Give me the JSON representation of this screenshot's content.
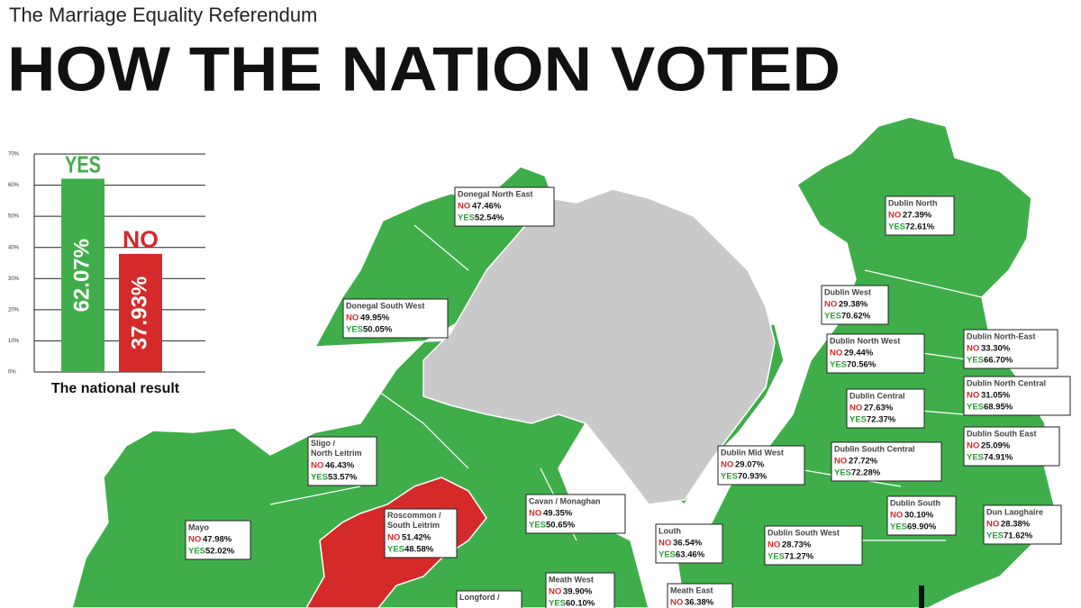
{
  "header": {
    "subtitle": "The Marriage Equality Referendum",
    "title": "HOW THE NATION VOTED"
  },
  "chart_data": {
    "type": "bar",
    "title": "The national result",
    "categories": [
      "YES",
      "NO"
    ],
    "values": [
      62.07,
      37.93
    ],
    "value_labels": [
      "62.07%",
      "37.93%"
    ],
    "colors": [
      "#3fae4a",
      "#d42a2a"
    ],
    "ylim": [
      0,
      70
    ],
    "yticks": [
      {
        "value": 0,
        "label": "0%"
      },
      {
        "value": 10,
        "label": "10%"
      },
      {
        "value": 20,
        "label": "20%"
      },
      {
        "value": 30,
        "label": "30%"
      },
      {
        "value": 40,
        "label": "40%"
      },
      {
        "value": 50,
        "label": "50%"
      },
      {
        "value": 60,
        "label": "60%"
      },
      {
        "value": 70,
        "label": "70%"
      }
    ],
    "grid": true
  },
  "legend": {
    "no": "NO",
    "yes": "YES"
  },
  "constituencies": [
    {
      "name": "Donegal North East",
      "no": "47.46%",
      "yes": "52.54%"
    },
    {
      "name": "Donegal South West",
      "no": "49.95%",
      "yes": "50.05%"
    },
    {
      "name": "Dublin North",
      "no": "27.39%",
      "yes": "72.61%"
    },
    {
      "name": "Dublin West",
      "no": "29.38%",
      "yes": "70.62%"
    },
    {
      "name": "Dublin North West",
      "no": "29.44%",
      "yes": "70.56%"
    },
    {
      "name": "Dublin North-East",
      "no": "33.30%",
      "yes": "66.70%"
    },
    {
      "name": "Dublin Central",
      "no": "27.63%",
      "yes": "72.37%"
    },
    {
      "name": "Dublin North Central",
      "no": "31.05%",
      "yes": "68.95%"
    },
    {
      "name": "Dublin South East",
      "no": "25.09%",
      "yes": "74.91%"
    },
    {
      "name": "Dublin Mid West",
      "no": "29.07%",
      "yes": "70.93%"
    },
    {
      "name": "Dublin South Central",
      "no": "27.72%",
      "yes": "72.28%"
    },
    {
      "name": "Sligo / North Leitrim",
      "no": "46.43%",
      "yes": "53.57%"
    },
    {
      "name": "Cavan / Monaghan",
      "no": "49.35%",
      "yes": "50.65%"
    },
    {
      "name": "Dublin South",
      "no": "30.10%",
      "yes": "69.90%"
    },
    {
      "name": "Dun Laoghaire",
      "no": "28.38%",
      "yes": "71.62%"
    },
    {
      "name": "Mayo",
      "no": "47.98%",
      "yes": "52.02%"
    },
    {
      "name": "Roscommon / South Leitrim",
      "no": "51.42%",
      "yes": "48.58%"
    },
    {
      "name": "Louth",
      "no": "36.54%",
      "yes": "63.46%"
    },
    {
      "name": "Dublin South West",
      "no": "28.73%",
      "yes": "71.27%"
    },
    {
      "name": "Meath West",
      "no": "39.90%",
      "yes": "60.10%"
    },
    {
      "name": "Meath East",
      "no": "36.38%"
    },
    {
      "name": "Longford /"
    }
  ]
}
